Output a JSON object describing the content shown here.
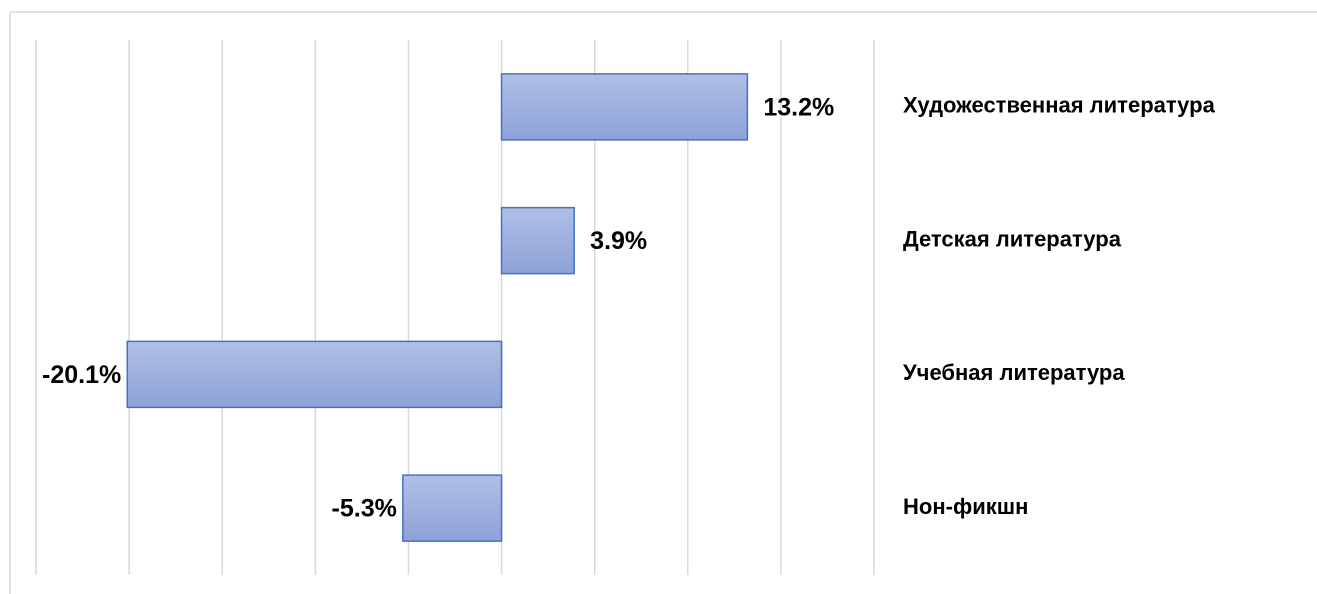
{
  "chart_data": {
    "type": "hbar",
    "categories": [
      "Художественная литература",
      "Детская литература",
      "Учебная литература",
      "Нон-фикшн"
    ],
    "values": [
      13.2,
      3.9,
      -20.1,
      -5.3
    ],
    "value_labels": [
      "13.2%",
      "3.9%",
      "-20.1%",
      "-5.3%"
    ],
    "color": "#4472c4",
    "xlim": [
      -25,
      20
    ],
    "xticks": [
      -25,
      -20,
      -15,
      -10,
      -5,
      0,
      5,
      10,
      15,
      20
    ],
    "grid": true
  }
}
